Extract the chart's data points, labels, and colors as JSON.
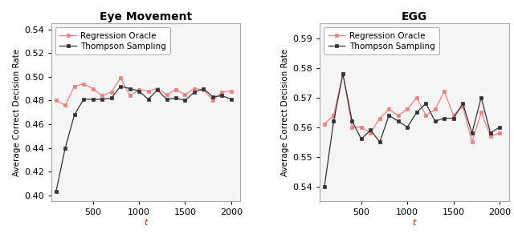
{
  "left_title": "Eye Movement",
  "right_title": "EGG",
  "xlabel": "t",
  "ylabel": "Average Correct Decision Rate",
  "legend_label_red": "Regression Oracle",
  "legend_label_black": "Thompson Sampling",
  "left_t": [
    100,
    200,
    300,
    400,
    500,
    600,
    700,
    800,
    900,
    1000,
    1100,
    1200,
    1300,
    1400,
    1500,
    1600,
    1700,
    1800,
    1900,
    2000
  ],
  "left_red": [
    0.48,
    0.476,
    0.492,
    0.494,
    0.49,
    0.484,
    0.487,
    0.499,
    0.484,
    0.489,
    0.488,
    0.49,
    0.485,
    0.489,
    0.485,
    0.49,
    0.489,
    0.48,
    0.487,
    0.488
  ],
  "left_black": [
    0.403,
    0.44,
    0.468,
    0.481,
    0.481,
    0.481,
    0.482,
    0.492,
    0.49,
    0.488,
    0.481,
    0.489,
    0.481,
    0.482,
    0.48,
    0.487,
    0.49,
    0.483,
    0.484,
    0.481
  ],
  "right_t": [
    100,
    200,
    300,
    400,
    500,
    600,
    700,
    800,
    900,
    1000,
    1100,
    1200,
    1300,
    1400,
    1500,
    1600,
    1700,
    1800,
    1900,
    2000
  ],
  "right_red": [
    0.561,
    0.564,
    0.578,
    0.56,
    0.56,
    0.558,
    0.563,
    0.566,
    0.564,
    0.566,
    0.57,
    0.564,
    0.566,
    0.572,
    0.564,
    0.567,
    0.555,
    0.565,
    0.557,
    0.558
  ],
  "right_black": [
    0.54,
    0.562,
    0.578,
    0.562,
    0.556,
    0.559,
    0.555,
    0.564,
    0.562,
    0.56,
    0.565,
    0.568,
    0.562,
    0.563,
    0.563,
    0.568,
    0.558,
    0.57,
    0.558,
    0.56
  ],
  "left_ylim": [
    0.395,
    0.545
  ],
  "left_yticks": [
    0.4,
    0.42,
    0.44,
    0.46,
    0.48,
    0.5,
    0.52,
    0.54
  ],
  "right_ylim": [
    0.535,
    0.595
  ],
  "right_yticks": [
    0.54,
    0.55,
    0.56,
    0.57,
    0.58,
    0.59
  ],
  "xlim": [
    50,
    2100
  ],
  "xticks": [
    500,
    1000,
    1500,
    2000
  ],
  "red_color": "#F08080",
  "black_color": "#333333",
  "plot_bg": "#F5F5F5",
  "spine_color": "#AAAAAA",
  "title_fontsize": 10,
  "axis_label_fontsize": 8,
  "tick_fontsize": 8,
  "legend_fontsize": 7.5
}
